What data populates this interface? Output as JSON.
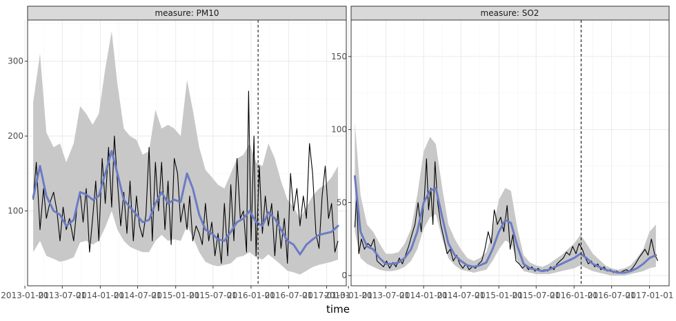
{
  "chart_data": {
    "type": "line",
    "xlabel": "time",
    "x_tick_labels": [
      "2013-01-01",
      "2013-07-01",
      "2014-01-01",
      "2014-07-01",
      "2015-01-01",
      "2015-07-01",
      "2016-01-01",
      "2016-07-01",
      "2017-01-01"
    ],
    "vline_x": "2016-02-04",
    "grid": true,
    "facets": [
      {
        "strip": "measure: PM10",
        "ylim": [
          0,
          355
        ],
        "yticks": [
          100,
          200,
          300
        ],
        "observed": {
          "x": [
            "2013-02-10",
            "2013-02-25",
            "2013-03-15",
            "2013-04-01",
            "2013-04-15",
            "2013-05-01",
            "2013-05-20",
            "2013-06-05",
            "2013-06-20",
            "2013-07-05",
            "2013-07-20",
            "2013-08-05",
            "2013-08-25",
            "2013-09-10",
            "2013-09-25",
            "2013-10-10",
            "2013-10-25",
            "2013-11-10",
            "2013-11-25",
            "2013-12-10",
            "2013-12-25",
            "2014-01-10",
            "2014-01-25",
            "2014-02-10",
            "2014-02-25",
            "2014-03-10",
            "2014-03-25",
            "2014-04-10",
            "2014-04-25",
            "2014-05-10",
            "2014-05-25",
            "2014-06-10",
            "2014-06-25",
            "2014-07-10",
            "2014-07-25",
            "2014-08-10",
            "2014-08-25",
            "2014-09-10",
            "2014-09-25",
            "2014-10-10",
            "2014-10-25",
            "2014-11-10",
            "2014-11-25",
            "2014-12-10",
            "2014-12-25",
            "2015-01-10",
            "2015-01-25",
            "2015-02-10",
            "2015-02-25",
            "2015-03-10",
            "2015-03-25",
            "2015-04-10",
            "2015-04-25",
            "2015-05-10",
            "2015-05-25",
            "2015-06-10",
            "2015-06-25",
            "2015-07-10",
            "2015-07-25",
            "2015-08-10",
            "2015-08-25",
            "2015-09-10",
            "2015-09-25",
            "2015-10-10",
            "2015-10-25",
            "2015-11-10",
            "2015-11-25",
            "2015-12-10",
            "2015-12-20",
            "2016-01-01",
            "2016-01-15",
            "2016-01-25",
            "2016-02-10",
            "2016-02-25",
            "2016-03-10",
            "2016-03-25",
            "2016-04-10",
            "2016-04-25",
            "2016-05-10",
            "2016-05-25",
            "2016-06-10",
            "2016-06-25",
            "2016-07-10",
            "2016-07-25",
            "2016-08-10",
            "2016-08-25",
            "2016-09-10",
            "2016-09-25",
            "2016-10-10",
            "2016-10-25",
            "2016-11-10",
            "2016-11-25",
            "2016-12-10",
            "2016-12-25",
            "2017-01-10",
            "2017-01-25",
            "2017-02-10",
            "2017-02-25"
          ],
          "y": [
            115,
            165,
            75,
            130,
            90,
            110,
            125,
            100,
            60,
            105,
            75,
            90,
            60,
            105,
            125,
            85,
            130,
            45,
            90,
            140,
            60,
            170,
            110,
            185,
            105,
            200,
            140,
            80,
            125,
            70,
            140,
            60,
            120,
            80,
            65,
            95,
            185,
            60,
            165,
            100,
            165,
            75,
            140,
            55,
            170,
            150,
            85,
            110,
            75,
            120,
            60,
            80,
            70,
            55,
            110,
            60,
            85,
            40,
            70,
            30,
            110,
            40,
            135,
            60,
            170,
            90,
            100,
            45,
            260,
            60,
            200,
            40,
            160,
            70,
            120,
            80,
            110,
            40,
            100,
            50,
            90,
            30,
            150,
            100,
            130,
            80,
            120,
            90,
            190,
            150,
            70,
            50,
            120,
            160,
            90,
            110,
            45,
            60
          ]
        },
        "trend": {
          "x": [
            "2013-02-10",
            "2013-03-15",
            "2013-04-15",
            "2013-05-20",
            "2013-06-20",
            "2013-07-20",
            "2013-08-25",
            "2013-09-25",
            "2013-10-25",
            "2013-11-25",
            "2013-12-25",
            "2014-01-25",
            "2014-02-25",
            "2014-03-25",
            "2014-04-25",
            "2014-05-25",
            "2014-06-25",
            "2014-07-25",
            "2014-08-25",
            "2014-09-25",
            "2014-10-25",
            "2014-11-25",
            "2014-12-25",
            "2015-01-25",
            "2015-02-25",
            "2015-03-25",
            "2015-04-25",
            "2015-05-25",
            "2015-06-25",
            "2015-07-25",
            "2015-08-25",
            "2015-09-25",
            "2015-10-25",
            "2015-11-25",
            "2015-12-25",
            "2016-01-25",
            "2016-02-25",
            "2016-03-25",
            "2016-04-25",
            "2016-05-25",
            "2016-06-25",
            "2016-07-25",
            "2016-08-25",
            "2016-09-25",
            "2016-10-25",
            "2016-11-25",
            "2016-12-25",
            "2017-01-25",
            "2017-02-25"
          ],
          "y": [
            118,
            160,
            120,
            100,
            95,
            80,
            88,
            125,
            122,
            115,
            120,
            150,
            180,
            150,
            115,
            105,
            95,
            85,
            88,
            110,
            125,
            110,
            115,
            112,
            150,
            130,
            95,
            75,
            70,
            62,
            60,
            72,
            85,
            90,
            100,
            85,
            80,
            98,
            90,
            75,
            60,
            55,
            42,
            55,
            62,
            68,
            70,
            72,
            80
          ]
        },
        "ribbon": {
          "lower": [
            45,
            60,
            40,
            36,
            32,
            34,
            38,
            58,
            60,
            55,
            60,
            78,
            100,
            75,
            60,
            52,
            48,
            45,
            45,
            60,
            68,
            60,
            62,
            60,
            80,
            65,
            45,
            32,
            28,
            26,
            28,
            30,
            38,
            40,
            45,
            38,
            35,
            42,
            35,
            28,
            20,
            18,
            15,
            20,
            25,
            28,
            30,
            32,
            35
          ],
          "upper": [
            245,
            310,
            205,
            185,
            190,
            165,
            190,
            240,
            230,
            215,
            230,
            290,
            340,
            270,
            210,
            200,
            195,
            175,
            180,
            235,
            210,
            215,
            210,
            200,
            275,
            235,
            185,
            155,
            145,
            135,
            130,
            150,
            170,
            175,
            190,
            165,
            160,
            190,
            170,
            140,
            115,
            105,
            90,
            105,
            120,
            130,
            135,
            145,
            160
          ]
        }
      },
      {
        "strip": "measure: SO2",
        "ylim": [
          -7,
          175
        ],
        "yticks": [
          0,
          50,
          100,
          150
        ],
        "observed": {
          "x": [
            "2013-02-01",
            "2013-02-10",
            "2013-02-20",
            "2013-03-05",
            "2013-03-20",
            "2013-04-05",
            "2013-04-20",
            "2013-05-05",
            "2013-05-20",
            "2013-06-05",
            "2013-06-20",
            "2013-07-05",
            "2013-07-20",
            "2013-08-05",
            "2013-08-20",
            "2013-09-05",
            "2013-09-20",
            "2013-10-05",
            "2013-10-20",
            "2013-11-05",
            "2013-11-20",
            "2013-12-05",
            "2013-12-20",
            "2014-01-05",
            "2014-01-15",
            "2014-01-25",
            "2014-02-05",
            "2014-02-15",
            "2014-02-25",
            "2014-03-10",
            "2014-03-25",
            "2014-04-10",
            "2014-04-25",
            "2014-05-10",
            "2014-05-25",
            "2014-06-10",
            "2014-06-25",
            "2014-07-10",
            "2014-07-25",
            "2014-08-10",
            "2014-08-25",
            "2014-09-10",
            "2014-09-25",
            "2014-10-10",
            "2014-10-25",
            "2014-11-10",
            "2014-11-25",
            "2014-12-10",
            "2014-12-25",
            "2015-01-10",
            "2015-01-25",
            "2015-02-10",
            "2015-02-25",
            "2015-03-10",
            "2015-03-25",
            "2015-04-10",
            "2015-04-25",
            "2015-05-10",
            "2015-05-25",
            "2015-06-10",
            "2015-06-25",
            "2015-07-10",
            "2015-07-25",
            "2015-08-10",
            "2015-08-25",
            "2015-09-10",
            "2015-09-25",
            "2015-10-10",
            "2015-10-25",
            "2015-11-10",
            "2015-11-25",
            "2015-12-10",
            "2015-12-25",
            "2016-01-10",
            "2016-01-25",
            "2016-02-10",
            "2016-02-25",
            "2016-03-10",
            "2016-03-25",
            "2016-04-10",
            "2016-04-25",
            "2016-05-10",
            "2016-05-25",
            "2016-06-10",
            "2016-06-25",
            "2016-07-10",
            "2016-07-25",
            "2016-08-10",
            "2016-08-25",
            "2016-09-10",
            "2016-09-25",
            "2016-10-10",
            "2016-10-25",
            "2016-11-10",
            "2016-11-25",
            "2016-12-10",
            "2016-12-25",
            "2017-01-10",
            "2017-01-25",
            "2017-02-10"
          ],
          "y": [
            33,
            55,
            15,
            25,
            18,
            22,
            20,
            25,
            10,
            8,
            6,
            10,
            5,
            9,
            6,
            12,
            8,
            14,
            20,
            28,
            35,
            50,
            30,
            55,
            80,
            45,
            60,
            35,
            78,
            50,
            35,
            25,
            15,
            18,
            10,
            14,
            8,
            5,
            8,
            4,
            6,
            5,
            8,
            10,
            18,
            30,
            22,
            45,
            35,
            40,
            30,
            48,
            18,
            28,
            10,
            8,
            5,
            7,
            4,
            6,
            3,
            5,
            3,
            4,
            3,
            6,
            4,
            8,
            10,
            12,
            16,
            14,
            20,
            15,
            22,
            18,
            12,
            8,
            10,
            6,
            8,
            4,
            6,
            3,
            4,
            2,
            3,
            2,
            3,
            4,
            3,
            5,
            8,
            12,
            15,
            18,
            14,
            25,
            15,
            10
          ]
        },
        "trend": {
          "x": [
            "2013-02-01",
            "2013-03-01",
            "2013-04-01",
            "2013-05-01",
            "2013-06-01",
            "2013-07-01",
            "2013-08-01",
            "2013-09-01",
            "2013-10-01",
            "2013-11-01",
            "2013-12-01",
            "2014-01-01",
            "2014-02-01",
            "2014-03-01",
            "2014-04-01",
            "2014-05-01",
            "2014-06-01",
            "2014-07-01",
            "2014-08-01",
            "2014-09-01",
            "2014-10-01",
            "2014-11-01",
            "2014-12-01",
            "2015-01-01",
            "2015-02-01",
            "2015-03-01",
            "2015-04-01",
            "2015-05-01",
            "2015-06-01",
            "2015-07-01",
            "2015-08-01",
            "2015-09-01",
            "2015-10-01",
            "2015-11-01",
            "2015-12-01",
            "2016-01-01",
            "2016-02-01",
            "2016-03-01",
            "2016-04-01",
            "2016-05-01",
            "2016-06-01",
            "2016-07-01",
            "2016-08-01",
            "2016-09-01",
            "2016-10-01",
            "2016-11-01",
            "2016-12-01",
            "2017-01-01",
            "2017-02-01"
          ],
          "y": [
            68,
            30,
            20,
            18,
            12,
            8,
            8,
            9,
            12,
            18,
            30,
            50,
            58,
            60,
            40,
            22,
            14,
            10,
            7,
            6,
            7,
            9,
            18,
            30,
            38,
            36,
            20,
            8,
            5,
            4,
            3,
            4,
            6,
            8,
            10,
            12,
            15,
            12,
            8,
            6,
            4,
            3,
            2,
            2,
            3,
            5,
            8,
            12,
            14
          ]
        },
        "ribbon": {
          "lower": [
            30,
            12,
            8,
            6,
            4,
            3,
            3,
            4,
            6,
            10,
            18,
            32,
            40,
            42,
            25,
            12,
            7,
            4,
            3,
            2,
            3,
            4,
            10,
            18,
            24,
            22,
            10,
            3,
            2,
            1,
            1,
            1,
            2,
            3,
            4,
            5,
            7,
            5,
            3,
            2,
            1,
            0,
            0,
            0,
            1,
            2,
            3,
            5,
            6
          ],
          "upper": [
            105,
            55,
            35,
            30,
            22,
            15,
            15,
            16,
            22,
            32,
            55,
            85,
            95,
            90,
            60,
            35,
            25,
            18,
            12,
            10,
            12,
            16,
            30,
            52,
            60,
            58,
            32,
            14,
            9,
            7,
            6,
            8,
            11,
            14,
            18,
            22,
            28,
            22,
            15,
            11,
            7,
            5,
            4,
            5,
            7,
            12,
            18,
            30,
            35
          ]
        }
      }
    ]
  },
  "colors": {
    "ribbon": "#c8c8c8",
    "trend": "#6b7bc4",
    "observed": "#000000",
    "strip_fill": "#d9d9d9",
    "grid": "#ebebeb"
  }
}
